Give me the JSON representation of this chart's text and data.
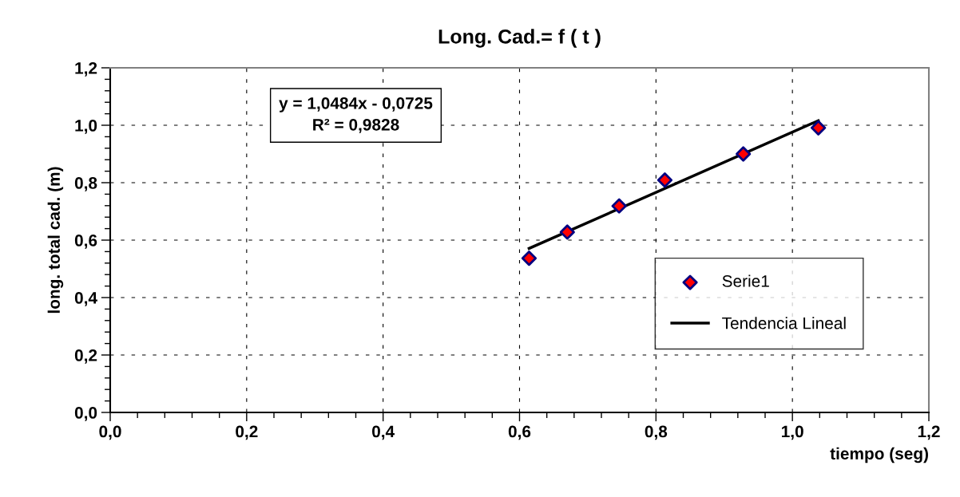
{
  "chart_data": {
    "type": "scatter",
    "title": "Long. Cad.= f ( t )",
    "xlabel": "tiempo (seg)",
    "ylabel": "long. total cad. (m)",
    "annotations": [
      "y = 1,0484x - 0,0725\nR² = 0,9828"
    ],
    "series": [
      {
        "name": "Serie1",
        "color": "#ff0000",
        "marker": "diamond",
        "x": [
          0.614,
          0.67,
          0.746,
          0.813,
          0.928,
          1.038
        ],
        "values": [
          0.537,
          0.628,
          0.719,
          0.809,
          0.9,
          0.991
        ]
      },
      {
        "name": "Tendencia Lineal",
        "type": "line",
        "color": "#000000",
        "line_style": "solid",
        "x": [
          0.614,
          1.038
        ],
        "values": [
          0.571,
          1.016
        ]
      }
    ],
    "xlim": [
      0,
      1.2
    ],
    "ylim": [
      0,
      1.2
    ],
    "xticks": [
      {
        "value": 0,
        "label": "0,0"
      },
      {
        "value": 0.2,
        "label": "0,2"
      },
      {
        "value": 0.4,
        "label": "0,4"
      },
      {
        "value": 0.6,
        "label": "0,6"
      },
      {
        "value": 0.8,
        "label": "0,8"
      },
      {
        "value": 1.0,
        "label": "1,0"
      },
      {
        "value": 1.2,
        "label": "1,2"
      }
    ],
    "yticks": [
      {
        "value": 0,
        "label": "0,0"
      },
      {
        "value": 0.2,
        "label": "0,2"
      },
      {
        "value": 0.4,
        "label": "0,4"
      },
      {
        "value": 0.6,
        "label": "0,6"
      },
      {
        "value": 0.8,
        "label": "0,8"
      },
      {
        "value": 1.0,
        "label": "1,0"
      },
      {
        "value": 1.2,
        "label": "1,2"
      }
    ],
    "grid": true,
    "legend": "bottom right"
  }
}
